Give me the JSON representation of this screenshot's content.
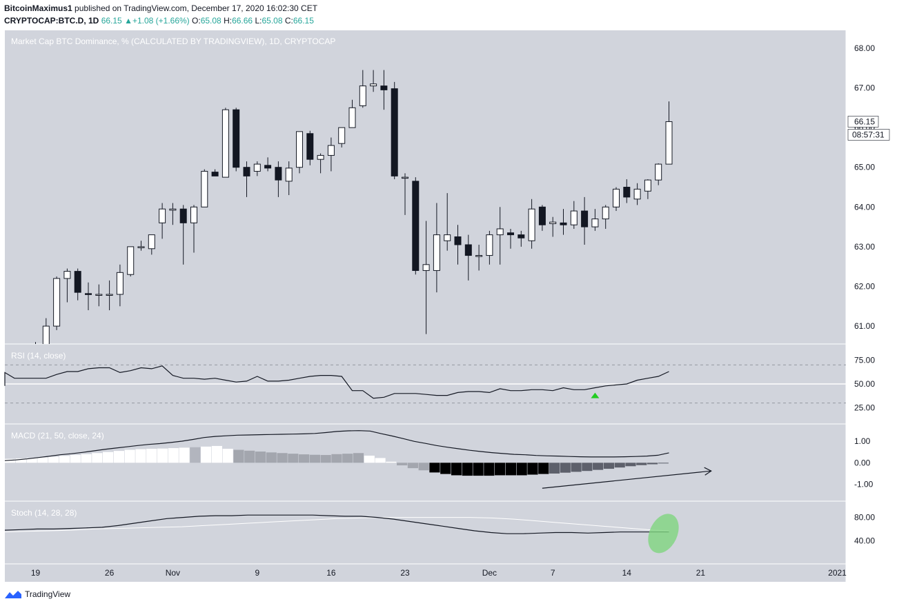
{
  "header": {
    "author": "BitcoinMaximus1",
    "published_text": "published on TradingView.com, December 17, 2020 16:02:30 CET",
    "symbol": "CRYPTOCAP:BTC.D, 1D",
    "last": "66.15",
    "change": "+1.08 (+1.66%)",
    "open_label": "O:",
    "open": "65.08",
    "high_label": "H:",
    "high": "66.66",
    "low_label": "L:",
    "low": "65.08",
    "close_label": "C:",
    "close": "66.15"
  },
  "footer": {
    "brand": "TradingView"
  },
  "colors": {
    "background": "#d1d4dc",
    "up_candle": "#ffffff",
    "down_candle": "#131722",
    "green": "#22cc22",
    "axis_bg": "#ffffff"
  },
  "chart_data": [
    {
      "type": "candlestick",
      "title": "Market Cap BTC Dominance, % (CALCULATED BY TRADINGVIEW), 1D, CRYPTOCAP",
      "x_ticks": [
        "19",
        "26",
        "Nov",
        "9",
        "16",
        "23",
        "Dec",
        "7",
        "14",
        "21",
        "2021"
      ],
      "y_ticks": [
        "68.00",
        "67.00",
        "66.00",
        "65.00",
        "64.00",
        "63.00",
        "62.00",
        "61.00"
      ],
      "ylim": [
        60.55,
        68.45
      ],
      "last_price_label": "66.15",
      "countdown_label": "08:57:31",
      "candles": [
        {
          "o": 60.3,
          "h": 60.6,
          "l": 60.2,
          "c": 60.45
        },
        {
          "o": 60.45,
          "h": 61.2,
          "l": 60.3,
          "c": 61.0
        },
        {
          "o": 61.0,
          "h": 62.25,
          "l": 60.9,
          "c": 62.2
        },
        {
          "o": 62.2,
          "h": 62.45,
          "l": 61.6,
          "c": 62.38
        },
        {
          "o": 62.38,
          "h": 62.45,
          "l": 61.65,
          "c": 61.85
        },
        {
          "o": 61.82,
          "h": 62.1,
          "l": 61.4,
          "c": 61.8
        },
        {
          "o": 61.78,
          "h": 62.05,
          "l": 61.5,
          "c": 61.8
        },
        {
          "o": 61.78,
          "h": 62.15,
          "l": 61.4,
          "c": 61.8
        },
        {
          "o": 61.8,
          "h": 62.55,
          "l": 61.5,
          "c": 62.35
        },
        {
          "o": 62.3,
          "h": 63.0,
          "l": 62.25,
          "c": 63.0
        },
        {
          "o": 63.0,
          "h": 63.15,
          "l": 62.9,
          "c": 63.0
        },
        {
          "o": 62.95,
          "h": 63.3,
          "l": 62.8,
          "c": 63.3
        },
        {
          "o": 63.6,
          "h": 64.1,
          "l": 63.2,
          "c": 63.95
        },
        {
          "o": 63.92,
          "h": 64.1,
          "l": 63.55,
          "c": 63.95
        },
        {
          "o": 63.95,
          "h": 64.05,
          "l": 62.55,
          "c": 63.6
        },
        {
          "o": 63.6,
          "h": 64.05,
          "l": 62.85,
          "c": 64.0
        },
        {
          "o": 64.0,
          "h": 64.95,
          "l": 64.0,
          "c": 64.9
        },
        {
          "o": 64.88,
          "h": 64.95,
          "l": 64.8,
          "c": 64.78
        },
        {
          "o": 64.75,
          "h": 66.5,
          "l": 64.75,
          "c": 66.45
        },
        {
          "o": 66.45,
          "h": 66.5,
          "l": 64.9,
          "c": 65.0
        },
        {
          "o": 65.0,
          "h": 65.15,
          "l": 64.25,
          "c": 64.78
        },
        {
          "o": 64.9,
          "h": 65.15,
          "l": 64.78,
          "c": 65.08
        },
        {
          "o": 65.05,
          "h": 65.25,
          "l": 64.9,
          "c": 64.98
        },
        {
          "o": 65.0,
          "h": 65.15,
          "l": 64.25,
          "c": 64.68
        },
        {
          "o": 64.65,
          "h": 65.15,
          "l": 64.3,
          "c": 64.98
        },
        {
          "o": 65.0,
          "h": 65.9,
          "l": 64.85,
          "c": 65.9
        },
        {
          "o": 65.85,
          "h": 65.92,
          "l": 65.05,
          "c": 65.2
        },
        {
          "o": 65.2,
          "h": 65.35,
          "l": 64.85,
          "c": 65.3
        },
        {
          "o": 65.3,
          "h": 65.75,
          "l": 64.9,
          "c": 65.55
        },
        {
          "o": 65.6,
          "h": 66.0,
          "l": 65.5,
          "c": 66.0
        },
        {
          "o": 66.0,
          "h": 66.7,
          "l": 66.0,
          "c": 66.5
        },
        {
          "o": 66.55,
          "h": 67.45,
          "l": 66.5,
          "c": 67.05
        },
        {
          "o": 67.05,
          "h": 67.45,
          "l": 66.9,
          "c": 67.1
        },
        {
          "o": 67.05,
          "h": 67.45,
          "l": 66.45,
          "c": 66.95
        },
        {
          "o": 66.98,
          "h": 67.15,
          "l": 64.7,
          "c": 64.78
        },
        {
          "o": 64.75,
          "h": 64.85,
          "l": 63.8,
          "c": 64.75
        },
        {
          "o": 64.65,
          "h": 64.75,
          "l": 62.3,
          "c": 62.4
        },
        {
          "o": 62.4,
          "h": 63.65,
          "l": 60.8,
          "c": 62.55
        },
        {
          "o": 62.4,
          "h": 64.1,
          "l": 61.85,
          "c": 63.3
        },
        {
          "o": 63.15,
          "h": 64.35,
          "l": 62.9,
          "c": 63.3
        },
        {
          "o": 63.25,
          "h": 63.55,
          "l": 62.55,
          "c": 63.05
        },
        {
          "o": 63.05,
          "h": 63.3,
          "l": 62.15,
          "c": 62.78
        },
        {
          "o": 62.78,
          "h": 63.05,
          "l": 62.4,
          "c": 62.78
        },
        {
          "o": 62.78,
          "h": 63.4,
          "l": 62.55,
          "c": 63.3
        },
        {
          "o": 63.3,
          "h": 64.0,
          "l": 62.55,
          "c": 63.45
        },
        {
          "o": 63.35,
          "h": 63.45,
          "l": 62.95,
          "c": 63.3
        },
        {
          "o": 63.3,
          "h": 63.4,
          "l": 63.0,
          "c": 63.22
        },
        {
          "o": 63.15,
          "h": 64.2,
          "l": 62.95,
          "c": 63.95
        },
        {
          "o": 64.0,
          "h": 64.05,
          "l": 63.4,
          "c": 63.55
        },
        {
          "o": 63.58,
          "h": 63.75,
          "l": 63.25,
          "c": 63.62
        },
        {
          "o": 63.6,
          "h": 63.95,
          "l": 63.3,
          "c": 63.55
        },
        {
          "o": 63.55,
          "h": 64.15,
          "l": 63.45,
          "c": 63.9
        },
        {
          "o": 63.9,
          "h": 64.25,
          "l": 63.05,
          "c": 63.5
        },
        {
          "o": 63.5,
          "h": 63.95,
          "l": 63.4,
          "c": 63.7
        },
        {
          "o": 63.7,
          "h": 64.05,
          "l": 63.45,
          "c": 64.0
        },
        {
          "o": 64.0,
          "h": 64.5,
          "l": 63.9,
          "c": 64.45
        },
        {
          "o": 64.5,
          "h": 64.7,
          "l": 64.1,
          "c": 64.25
        },
        {
          "o": 64.2,
          "h": 64.6,
          "l": 64.05,
          "c": 64.45
        },
        {
          "o": 64.4,
          "h": 64.7,
          "l": 64.2,
          "c": 64.68
        },
        {
          "o": 64.68,
          "h": 65.1,
          "l": 64.55,
          "c": 65.08
        },
        {
          "o": 65.08,
          "h": 66.66,
          "l": 65.08,
          "c": 66.15
        }
      ]
    },
    {
      "type": "line",
      "title": "RSI (14, close)",
      "y_ticks": [
        "75.00",
        "50.00",
        "25.00"
      ],
      "ylim": [
        8,
        92
      ],
      "guide_lines": [
        70,
        50,
        30
      ],
      "values": [
        50,
        50,
        48,
        54,
        59,
        62,
        56,
        56,
        56,
        56,
        60,
        63,
        63,
        66,
        67,
        67,
        62,
        64,
        67,
        66,
        69,
        59,
        56,
        56,
        55,
        56,
        54,
        52,
        53,
        58,
        53,
        53,
        54,
        56,
        58,
        59,
        59,
        58,
        43,
        43,
        35,
        36,
        40,
        40,
        40,
        39,
        38,
        38,
        41,
        42,
        42,
        41,
        45,
        43,
        43,
        44,
        44,
        43,
        46,
        44,
        44,
        46,
        48,
        49,
        50,
        54,
        56,
        58,
        63
      ],
      "x_start_index": -8,
      "marker": {
        "type": "triangle-up",
        "index": 53,
        "value": 38
      }
    },
    {
      "type": "line+histogram",
      "title": "MACD (21, 50, close, 24)",
      "y_ticks": [
        "1.00",
        "0.00",
        "-1.00"
      ],
      "ylim": [
        -1.78,
        1.8
      ],
      "macd": [
        0.1,
        0.13,
        0.18,
        0.24,
        0.3,
        0.37,
        0.42,
        0.48,
        0.55,
        0.62,
        0.68,
        0.74,
        0.8,
        0.85,
        0.89,
        0.94,
        1.0,
        1.08,
        1.17,
        1.22,
        1.25,
        1.28,
        1.29,
        1.3,
        1.31,
        1.32,
        1.33,
        1.34,
        1.36,
        1.4,
        1.45,
        1.48,
        1.49,
        1.47,
        1.35,
        1.24,
        1.12,
        0.99,
        0.9,
        0.8,
        0.72,
        0.65,
        0.58,
        0.52,
        0.47,
        0.43,
        0.39,
        0.37,
        0.34,
        0.32,
        0.31,
        0.29,
        0.28,
        0.27,
        0.27,
        0.27,
        0.28,
        0.29,
        0.31,
        0.35,
        0.46
      ],
      "histogram": [
        0.18,
        0.2,
        0.22,
        0.25,
        0.28,
        0.32,
        0.36,
        0.4,
        0.45,
        0.5,
        0.55,
        0.6,
        0.63,
        0.65,
        0.66,
        0.68,
        0.7,
        0.72,
        0.75,
        0.78,
        0.65,
        0.6,
        0.56,
        0.52,
        0.48,
        0.45,
        0.42,
        0.39,
        0.37,
        0.36,
        0.4,
        0.42,
        0.45,
        0.33,
        0.22,
        0.05,
        -0.12,
        -0.25,
        -0.35,
        -0.45,
        -0.52,
        -0.58,
        -0.6,
        -0.6,
        -0.6,
        -0.58,
        -0.58,
        -0.58,
        -0.55,
        -0.52,
        -0.5,
        -0.46,
        -0.42,
        -0.38,
        -0.33,
        -0.28,
        -0.22,
        -0.16,
        -0.11,
        -0.07,
        -0.02
      ],
      "histogram_shade": [
        "w",
        "w",
        "w",
        "w",
        "w",
        "w",
        "w",
        "w",
        "w",
        "w",
        "w",
        "w",
        "w",
        "w",
        "w",
        "w",
        "w",
        "g",
        "w",
        "w",
        "w",
        "L",
        "L",
        "L",
        "L",
        "L",
        "L",
        "L",
        "L",
        "L",
        "L",
        "L",
        "L",
        "w",
        "w",
        "w",
        "L",
        "L",
        "L",
        "k",
        "k",
        "k",
        "k",
        "k",
        "k",
        "k",
        "k",
        "k",
        "k",
        "k",
        "d",
        "d",
        "d",
        "d",
        "d",
        "d",
        "d",
        "d",
        "d",
        "d",
        "d"
      ],
      "trendline": {
        "from": [
          48,
          -1.18
        ],
        "to": [
          64,
          -0.38
        ]
      }
    },
    {
      "type": "line",
      "title": "Stoch (14, 28, 28)",
      "y_ticks": [
        "80.00",
        "40.00"
      ],
      "ylim": [
        0,
        108
      ],
      "k": [
        58,
        59,
        60,
        60,
        61,
        62,
        63,
        66,
        70,
        74,
        78,
        80,
        82,
        83,
        83,
        84,
        84,
        84,
        84,
        84,
        83,
        82,
        82,
        80,
        77,
        73,
        69,
        65,
        61,
        57,
        54,
        52,
        52,
        53,
        54,
        54,
        53,
        54,
        55,
        55,
        55,
        55
      ],
      "d": [
        55,
        56,
        57,
        58,
        60,
        61,
        62,
        63,
        64,
        66,
        68,
        70,
        72,
        74,
        76,
        78,
        79,
        80,
        80,
        80,
        80,
        80,
        79,
        77,
        74,
        71,
        68,
        65,
        62,
        59,
        57
      ],
      "highlight": {
        "shape": "ellipse",
        "color": "#7fd47f",
        "index": 60,
        "value": 50
      }
    }
  ]
}
